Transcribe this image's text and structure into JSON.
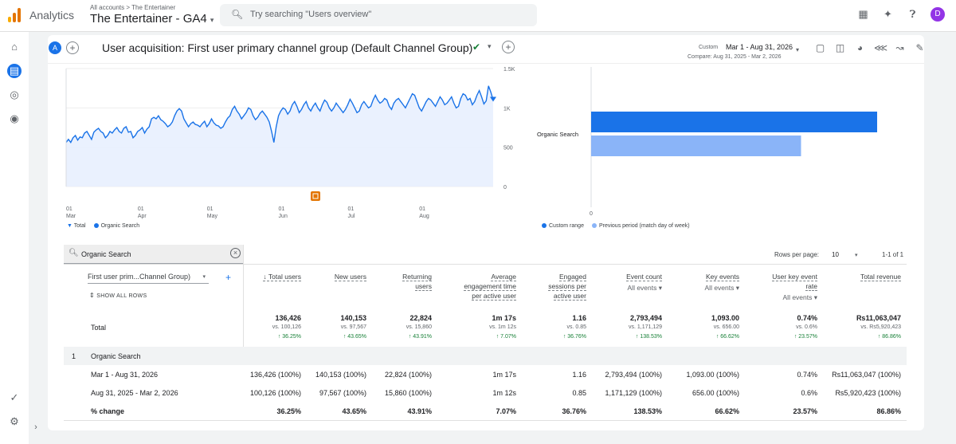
{
  "app": {
    "name": "Analytics",
    "breadcrumb": "All accounts > The Entertainer",
    "property": "The Entertainer - GA4",
    "property_caret": "▾",
    "search_placeholder": "Try searching \"Users overview\"",
    "avatar_letter": "D"
  },
  "colors": {
    "accent": "#1a73e8",
    "light_series": "#8ab4f8",
    "positive": "#188038",
    "avatar": "#9334e6"
  },
  "icons": {
    "logo": "analytics-logo-icon",
    "search": "search-icon",
    "apps": "apps-grid-icon",
    "insights": "search-insights-icon",
    "help": "help-icon",
    "home": "home-icon",
    "reports": "reports-icon",
    "explore": "explore-icon",
    "advertising": "advertising-icon",
    "admin": "settings-icon"
  },
  "report": {
    "comparison_chip": "A",
    "title": "User acquisition: First user primary channel group (Default Channel Group)",
    "date_custom_label": "Custom",
    "date_range": "Mar 1 - Aug 31, 2026",
    "compare": "Compare: Aug 31, 2025 - Mar 2, 2026"
  },
  "chart_data": [
    {
      "type": "line",
      "x_axis": "daily, Mar 1 - Aug 31, 2026",
      "x_ticks": [
        {
          "day": "01",
          "month": "Mar",
          "index": 0
        },
        {
          "day": "01",
          "month": "Apr",
          "index": 31
        },
        {
          "day": "01",
          "month": "May",
          "index": 61
        },
        {
          "day": "01",
          "month": "Jun",
          "index": 92
        },
        {
          "day": "01",
          "month": "Jul",
          "index": 122
        },
        {
          "day": "01",
          "month": "Aug",
          "index": 153
        }
      ],
      "y_ticks": [
        "1.5K",
        "1K",
        "500",
        "0"
      ],
      "ylim": [
        0,
        1500
      ],
      "series": [
        {
          "name": "Organic Search",
          "values": [
            560,
            600,
            560,
            620,
            650,
            590,
            630,
            620,
            680,
            700,
            650,
            600,
            690,
            720,
            740,
            700,
            680,
            620,
            650,
            700,
            680,
            720,
            750,
            700,
            680,
            740,
            760,
            690,
            700,
            620,
            650,
            700,
            720,
            750,
            680,
            730,
            760,
            860,
            880,
            860,
            900,
            850,
            830,
            800,
            760,
            780,
            820,
            900,
            960,
            990,
            960,
            860,
            810,
            760,
            800,
            820,
            790,
            780,
            760,
            800,
            830,
            760,
            800,
            860,
            810,
            780,
            770,
            740,
            760,
            820,
            870,
            900,
            980,
            1020,
            960,
            920,
            860,
            900,
            940,
            1000,
            980,
            900,
            850,
            880,
            930,
            960,
            920,
            880,
            820,
            700,
            560,
            760,
            900,
            960,
            1000,
            980,
            920,
            960,
            1040,
            1080,
            1020,
            940,
            980,
            1040,
            1080,
            1000,
            960,
            1020,
            1060,
            1000,
            960,
            1040,
            1100,
            1070,
            1000,
            960,
            1000,
            1060,
            1020,
            980,
            940,
            980,
            1040,
            1110,
            1060,
            1000,
            940,
            960,
            1040,
            1080,
            1040,
            1000,
            1020,
            1100,
            1160,
            1100,
            1060,
            1080,
            1120,
            1100,
            1020,
            980,
            1060,
            1100,
            1120,
            1080,
            1040,
            1000,
            1060,
            1120,
            1180,
            1160,
            1080,
            1000,
            960,
            1020,
            1080,
            1120,
            1100,
            1060,
            1020,
            1080,
            1140,
            1100,
            1040,
            1060,
            1100,
            1140,
            1060,
            1000,
            1020,
            1120,
            1180,
            1160,
            1100,
            1120,
            1040,
            1080,
            1160,
            1220,
            1140,
            1050,
            1090,
            1280,
            1200,
            1100
          ]
        }
      ],
      "legend": [
        "Total",
        "Organic Search"
      ],
      "annotation_icon": "annotation-icon"
    },
    {
      "type": "bar",
      "orientation": "horizontal",
      "categories": [
        "Organic Search"
      ],
      "series": [
        {
          "name": "Custom range",
          "values": [
            136426
          ]
        },
        {
          "name": "Previous period (match day of week)",
          "values": [
            100126
          ]
        }
      ],
      "x_ticks": [
        "0"
      ],
      "xlim": [
        0,
        152000
      ],
      "legend": [
        "Custom range",
        "Previous period (match day of week)"
      ]
    }
  ],
  "table": {
    "filter_value": "Organic Search",
    "rows_per_page_label": "Rows per page:",
    "rows_per_page": "10",
    "page_range": "1-1 of 1",
    "dimension_label": "First user prim...Channel Group)",
    "show_all_rows": "SHOW ALL ROWS",
    "columns": [
      {
        "line1": "↓ Total users",
        "line2": "",
        "sub": ""
      },
      {
        "line1": "New users",
        "line2": "",
        "sub": ""
      },
      {
        "line1": "Returning",
        "line2": "users",
        "sub": ""
      },
      {
        "line1": "Average",
        "line2": "engagement time",
        "line3": "per active user",
        "sub": ""
      },
      {
        "line1": "Engaged",
        "line2": "sessions per",
        "line3": "active user",
        "sub": ""
      },
      {
        "line1": "Event count",
        "line2": "",
        "sub": "All events ▾"
      },
      {
        "line1": "Key events",
        "line2": "",
        "sub": "All events ▾"
      },
      {
        "line1": "User key event",
        "line2": "rate",
        "sub": "All events ▾"
      },
      {
        "line1": "Total revenue",
        "line2": "",
        "sub": ""
      }
    ],
    "totals_label": "Total",
    "totals": [
      {
        "value": "136,426",
        "compare": "vs. 100,126",
        "change": "↑ 36.25%"
      },
      {
        "value": "140,153",
        "compare": "vs. 97,567",
        "change": "↑ 43.65%"
      },
      {
        "value": "22,824",
        "compare": "vs. 15,860",
        "change": "↑ 43.91%"
      },
      {
        "value": "1m 17s",
        "compare": "vs. 1m 12s",
        "change": "↑ 7.07%"
      },
      {
        "value": "1.16",
        "compare": "vs. 0.85",
        "change": "↑ 36.76%"
      },
      {
        "value": "2,793,494",
        "compare": "vs. 1,171,129",
        "change": "↑ 138.53%"
      },
      {
        "value": "1,093.00",
        "compare": "vs. 656.00",
        "change": "↑ 66.62%"
      },
      {
        "value": "0.74%",
        "compare": "vs. 0.6%",
        "change": "↑ 23.57%"
      },
      {
        "value": "Rs11,063,047",
        "compare": "vs. Rs5,920,423",
        "change": "↑ 86.86%"
      }
    ],
    "group_index": "1",
    "group_label": "Organic Search",
    "rows": [
      {
        "label": "Mar 1 - Aug 31, 2026",
        "cells": [
          "136,426 (100%)",
          "140,153 (100%)",
          "22,824 (100%)",
          "1m 17s",
          "1.16",
          "2,793,494 (100%)",
          "1,093.00 (100%)",
          "0.74%",
          "Rs11,063,047 (100%)"
        ]
      },
      {
        "label": "Aug 31, 2025 - Mar 2, 2026",
        "cells": [
          "100,126 (100%)",
          "97,567 (100%)",
          "15,860 (100%)",
          "1m 12s",
          "0.85",
          "1,171,129 (100%)",
          "656.00 (100%)",
          "0.6%",
          "Rs5,920,423 (100%)"
        ]
      },
      {
        "label": "% change",
        "cells": [
          "36.25%",
          "43.65%",
          "43.91%",
          "7.07%",
          "36.76%",
          "138.53%",
          "66.62%",
          "23.57%",
          "86.86%"
        ]
      }
    ]
  }
}
